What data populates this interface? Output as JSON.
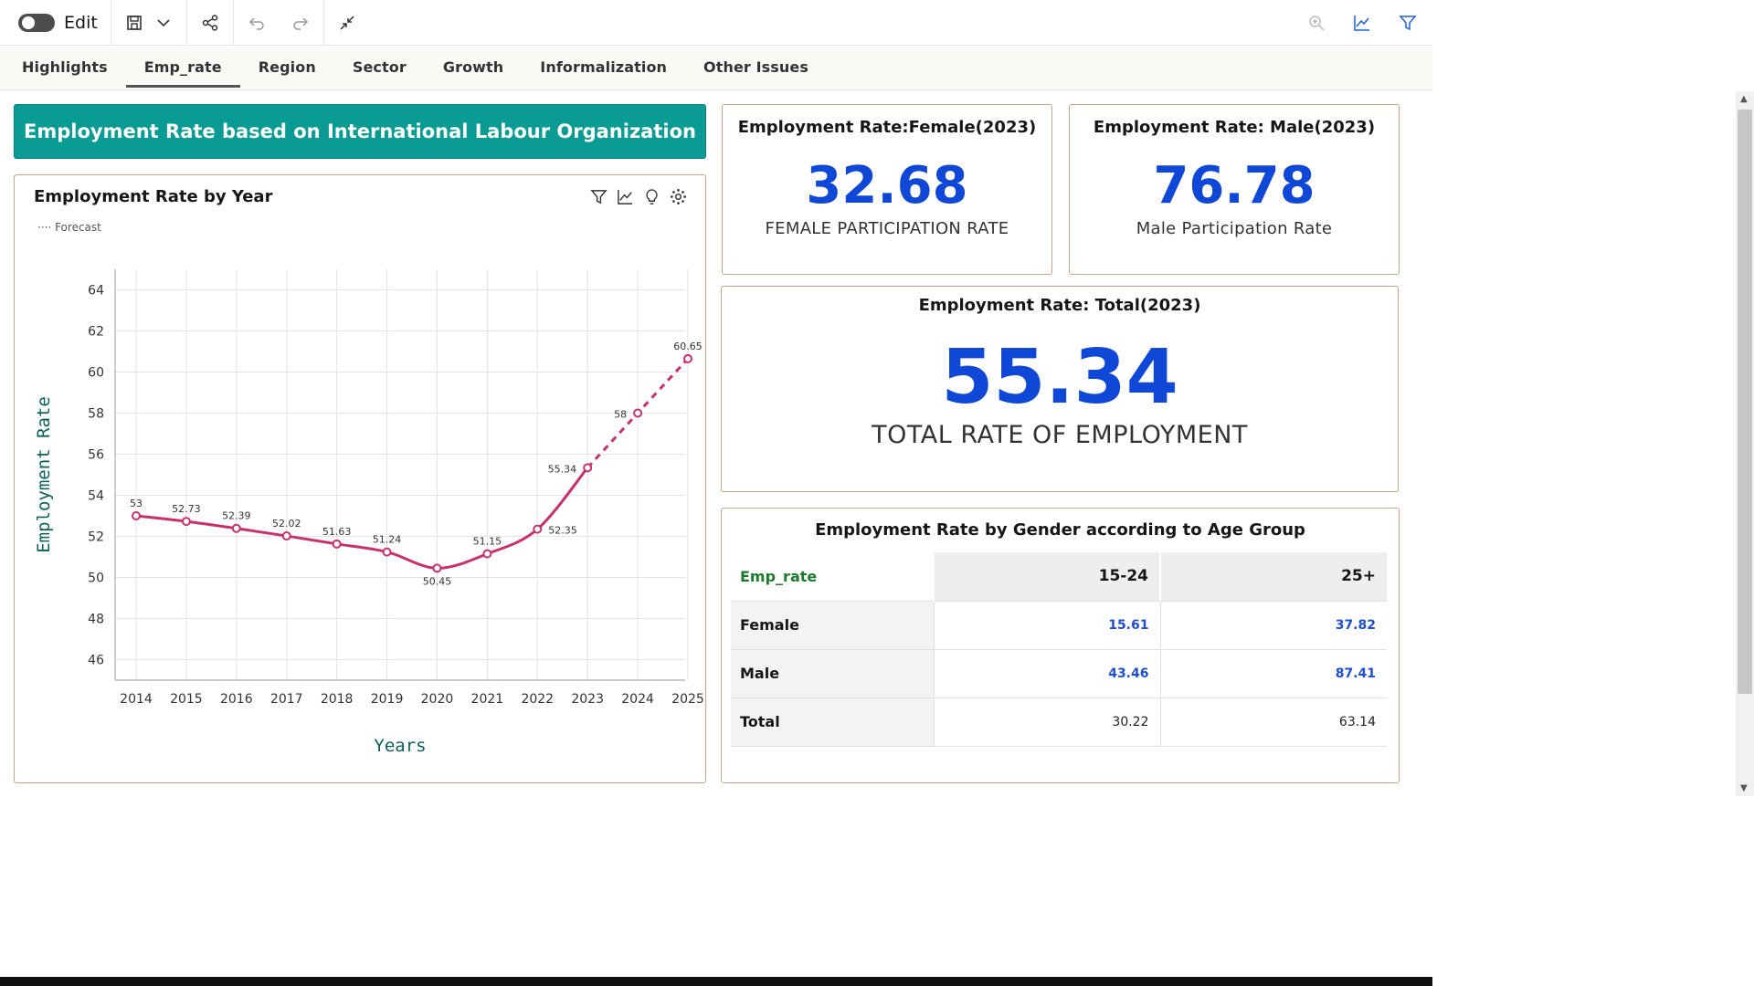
{
  "toolbar": {
    "edit_label": "Edit"
  },
  "tabs": [
    "Highlights",
    "Emp_rate",
    "Region",
    "Sector",
    "Growth",
    "Informalization",
    "Other Issues"
  ],
  "active_tab": "Emp_rate",
  "banner": {
    "title": "Employment Rate based on International Labour Organization",
    "color": "#0a9b94"
  },
  "kpis": {
    "female": {
      "title": "Employment Rate:Female(2023)",
      "value": "32.68",
      "subtitle": "FEMALE PARTICIPATION RATE"
    },
    "male": {
      "title": "Employment Rate: Male(2023)",
      "value": "76.78",
      "subtitle": "Male Participation Rate"
    },
    "total": {
      "title": "Employment Rate: Total(2023)",
      "value": "55.34",
      "subtitle": "TOTAL RATE OF EMPLOYMENT"
    }
  },
  "gender_table": {
    "title": "Employment Rate by Gender according to Age Group",
    "corner": "Emp_rate",
    "columns": [
      "15-24",
      "25+"
    ],
    "rows": [
      {
        "label": "Female",
        "values": [
          "15.61",
          "37.82"
        ]
      },
      {
        "label": "Male",
        "values": [
          "43.46",
          "87.41"
        ]
      },
      {
        "label": "Total",
        "values": [
          "30.22",
          "63.14"
        ]
      }
    ]
  },
  "chart_data": {
    "type": "line",
    "title": "Employment Rate by Year",
    "legend": "Forecast",
    "xlabel": "Years",
    "ylabel": "Employment Rate",
    "x": [
      2014,
      2015,
      2016,
      2017,
      2018,
      2019,
      2020,
      2021,
      2022,
      2023,
      2024,
      2025
    ],
    "series": [
      {
        "name": "",
        "values": [
          53,
          52.73,
          52.39,
          52.02,
          51.63,
          51.24,
          50.45,
          51.15,
          52.35,
          55.34,
          58,
          60.65
        ]
      }
    ],
    "forecast_from_index": 9,
    "yticks": [
      46,
      48,
      50,
      52,
      54,
      56,
      58,
      60,
      62,
      64
    ],
    "ylim": [
      45,
      65
    ],
    "grid": true,
    "line_color": "#c8306e",
    "axis_title_color": "#0b5f5a"
  }
}
